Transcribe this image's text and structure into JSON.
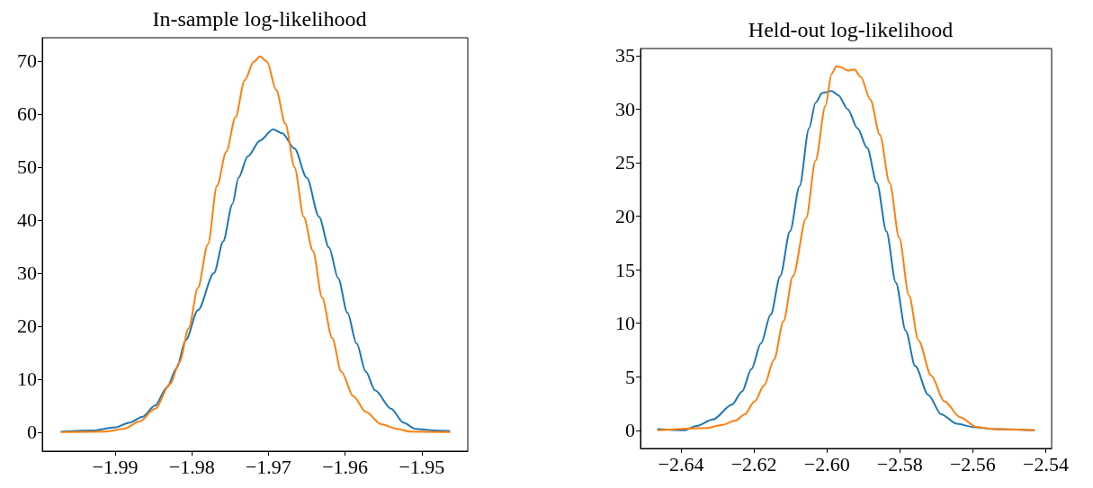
{
  "chart_data": [
    {
      "type": "line",
      "title": "In-sample log-likelihood",
      "grid": false,
      "marker": "none",
      "line_style": "solid",
      "xlim": [
        -1.9995,
        -1.944
      ],
      "ylim": [
        -3.6,
        74.4
      ],
      "xticks": [
        {
          "value": -1.99,
          "label": "−1.99"
        },
        {
          "value": -1.98,
          "label": "−1.98"
        },
        {
          "value": -1.97,
          "label": "−1.97"
        },
        {
          "value": -1.96,
          "label": "−1.96"
        },
        {
          "value": -1.95,
          "label": "−1.95"
        }
      ],
      "yticks": [
        0,
        10,
        20,
        30,
        40,
        50,
        60,
        70
      ],
      "series": [
        {
          "color": "#1f77b4",
          "x": [
            -1.997,
            -1.9929,
            -1.99,
            -1.9881,
            -1.9864,
            -1.9848,
            -1.9832,
            -1.982,
            -1.9808,
            -1.9792,
            -1.9771,
            -1.9759,
            -1.9747,
            -1.9739,
            -1.9727,
            -1.9711,
            -1.9694,
            -1.9682,
            -1.9666,
            -1.965,
            -1.9634,
            -1.9621,
            -1.9609,
            -1.9597,
            -1.9585,
            -1.9573,
            -1.9561,
            -1.954,
            -1.9524,
            -1.9508,
            -1.9484,
            -1.9464
          ],
          "values": [
            0.1,
            0.3,
            0.9,
            1.8,
            2.9,
            5,
            8.5,
            12,
            17.3,
            23,
            30,
            36,
            43,
            48,
            52,
            55,
            57.1,
            56.4,
            53.5,
            48,
            40.6,
            34.8,
            29,
            22.5,
            16.7,
            11.4,
            7.9,
            4.4,
            1.8,
            0.6,
            0.3,
            0.2
          ]
        },
        {
          "color": "#ff7f0e",
          "x": [
            -1.997,
            -1.9913,
            -1.9889,
            -1.9868,
            -1.9848,
            -1.9828,
            -1.9816,
            -1.9804,
            -1.9792,
            -1.9779,
            -1.9767,
            -1.9755,
            -1.9743,
            -1.9731,
            -1.9719,
            -1.9711,
            -1.9702,
            -1.969,
            -1.9678,
            -1.9666,
            -1.9654,
            -1.9642,
            -1.963,
            -1.9617,
            -1.9605,
            -1.9589,
            -1.9573,
            -1.9553,
            -1.9532,
            -1.9516,
            -1.9464
          ],
          "values": [
            0,
            0.1,
            0.6,
            2,
            4.4,
            9.1,
            13.2,
            19.6,
            27.2,
            35.4,
            46.5,
            52.9,
            59.4,
            66.4,
            69.9,
            70.9,
            69.9,
            64.6,
            58.2,
            50,
            40.6,
            34.2,
            25.4,
            17.8,
            11.4,
            6.7,
            3.8,
            1.5,
            0.6,
            0.1,
            0
          ]
        }
      ]
    },
    {
      "type": "line",
      "title": "Held-out log-likelihood",
      "grid": false,
      "marker": "none",
      "line_style": "solid",
      "xlim": [
        -2.6511,
        -2.5384
      ],
      "ylim": [
        -1.7,
        35.66
      ],
      "xticks": [
        {
          "value": -2.64,
          "label": "−2.64"
        },
        {
          "value": -2.62,
          "label": "−2.62"
        },
        {
          "value": -2.6,
          "label": "−2.60"
        },
        {
          "value": -2.58,
          "label": "−2.58"
        },
        {
          "value": -2.56,
          "label": "−2.56"
        },
        {
          "value": -2.54,
          "label": "−2.54"
        }
      ],
      "yticks": [
        0,
        5,
        10,
        15,
        20,
        25,
        30,
        35
      ],
      "series": [
        {
          "color": "#1f77b4",
          "x": [
            -2.6463,
            -2.6392,
            -2.6357,
            -2.6313,
            -2.626,
            -2.6233,
            -2.6207,
            -2.6181,
            -2.6154,
            -2.6128,
            -2.6101,
            -2.6075,
            -2.6049,
            -2.6031,
            -2.6013,
            -2.5987,
            -2.5969,
            -2.5943,
            -2.5916,
            -2.589,
            -2.5863,
            -2.5837,
            -2.5811,
            -2.5784,
            -2.5758,
            -2.5722,
            -2.5687,
            -2.5643,
            -2.5599,
            -2.5537,
            -2.5432
          ],
          "values": [
            0.1,
            0,
            0.4,
            1,
            2.4,
            3.6,
            5.7,
            8.1,
            10.8,
            14.4,
            18.6,
            22.8,
            28.2,
            30.6,
            31.5,
            31.7,
            31.3,
            30,
            28.2,
            26.4,
            23.1,
            18.6,
            13.8,
            9.3,
            6,
            3.3,
            1.5,
            0.6,
            0.3,
            0.1,
            0
          ]
        },
        {
          "color": "#ff7f0e",
          "x": [
            -2.6463,
            -2.633,
            -2.6286,
            -2.6251,
            -2.6225,
            -2.6198,
            -2.6172,
            -2.6145,
            -2.6119,
            -2.6093,
            -2.6057,
            -2.6031,
            -2.6004,
            -2.5987,
            -2.5974,
            -2.596,
            -2.5943,
            -2.5925,
            -2.5907,
            -2.5881,
            -2.5855,
            -2.5828,
            -2.5802,
            -2.5775,
            -2.5749,
            -2.5714,
            -2.5678,
            -2.5634,
            -2.559,
            -2.5537,
            -2.5432
          ],
          "values": [
            0,
            0.2,
            0.5,
            0.9,
            1.5,
            2.7,
            4.2,
            6.6,
            10.2,
            14.4,
            19.8,
            25.2,
            30.3,
            33.3,
            34,
            33.9,
            33.6,
            33.7,
            33,
            30.9,
            27.6,
            23.1,
            18,
            12.6,
            8.4,
            5.1,
            2.7,
            1.2,
            0.3,
            0.1,
            0
          ]
        }
      ]
    }
  ]
}
